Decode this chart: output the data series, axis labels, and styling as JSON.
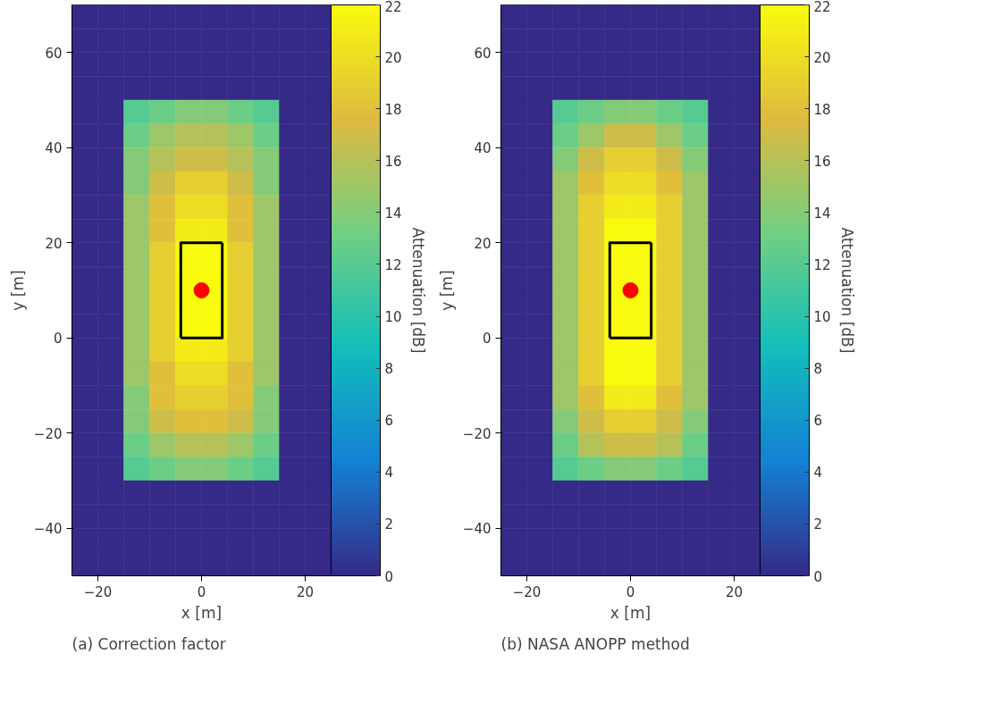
{
  "chart_data": [
    {
      "type": "heatmap",
      "xlabel": "x [m]",
      "ylabel": "y [m]",
      "clabel": "Attenuation [dB]",
      "annotations": [
        "(a) Correction factor"
      ],
      "xlim": [
        -25,
        25
      ],
      "ylim": [
        -50,
        70
      ],
      "xticks": [
        -20,
        0,
        20
      ],
      "yticks": [
        -40,
        -20,
        0,
        20,
        40,
        60
      ],
      "clim": [
        0,
        22
      ],
      "cticks": [
        0,
        2,
        4,
        6,
        8,
        10,
        12,
        14,
        16,
        18,
        20,
        22
      ],
      "cells": [
        [
          0,
          0,
          0,
          0,
          0,
          0,
          0,
          0,
          0,
          0
        ],
        [
          0,
          0,
          0,
          0,
          0,
          0,
          0,
          0,
          0,
          0
        ],
        [
          0,
          0,
          0,
          0,
          0,
          0,
          0,
          0,
          0,
          0
        ],
        [
          0,
          0,
          0,
          0,
          0,
          0,
          0,
          0,
          0,
          0
        ],
        [
          0,
          0,
          12,
          13,
          14,
          14,
          13,
          12,
          0,
          0
        ],
        [
          0,
          0,
          13,
          15,
          16,
          16,
          15,
          13,
          0,
          0
        ],
        [
          0,
          0,
          14,
          16,
          17,
          17,
          16,
          14,
          0,
          0
        ],
        [
          0,
          0,
          14,
          17,
          19,
          19,
          17,
          14,
          0,
          0
        ],
        [
          0,
          0,
          15,
          18,
          20,
          20,
          18,
          15,
          0,
          0
        ],
        [
          0,
          0,
          15,
          18,
          21,
          21,
          18,
          15,
          0,
          0
        ],
        [
          0,
          0,
          15,
          19,
          22,
          22,
          19,
          15,
          0,
          0
        ],
        [
          0,
          0,
          15,
          19,
          22,
          22,
          19,
          15,
          0,
          0
        ],
        [
          0,
          0,
          15,
          19,
          22,
          22,
          19,
          15,
          0,
          0
        ],
        [
          0,
          0,
          15,
          19,
          22,
          22,
          19,
          15,
          0,
          0
        ],
        [
          0,
          0,
          15,
          19,
          21,
          21,
          19,
          15,
          0,
          0
        ],
        [
          0,
          0,
          15,
          18,
          20,
          20,
          18,
          15,
          0,
          0
        ],
        [
          0,
          0,
          14,
          18,
          19,
          19,
          18,
          14,
          0,
          0
        ],
        [
          0,
          0,
          14,
          17,
          18,
          18,
          17,
          14,
          0,
          0
        ],
        [
          0,
          0,
          13,
          15,
          16,
          16,
          15,
          13,
          0,
          0
        ],
        [
          0,
          0,
          12,
          13,
          14,
          14,
          13,
          12,
          0,
          0
        ],
        [
          0,
          0,
          0,
          0,
          0,
          0,
          0,
          0,
          0,
          0
        ],
        [
          0,
          0,
          0,
          0,
          0,
          0,
          0,
          0,
          0,
          0
        ],
        [
          0,
          0,
          0,
          0,
          0,
          0,
          0,
          0,
          0,
          0
        ],
        [
          0,
          0,
          0,
          0,
          0,
          0,
          0,
          0,
          0,
          0
        ]
      ],
      "series": [
        {
          "type": "line",
          "x": [
            -4,
            -4,
            4
          ],
          "values": [
            0,
            20,
            20
          ],
          "color": "#000000"
        },
        {
          "type": "line",
          "x": [
            4,
            4,
            -4
          ],
          "values": [
            20,
            0,
            0
          ],
          "color": "#000000"
        },
        {
          "type": "scatter",
          "x": [
            0
          ],
          "values": [
            10
          ],
          "color": "#ff0000"
        }
      ],
      "grid": false
    },
    {
      "type": "heatmap",
      "xlabel": "x [m]",
      "ylabel": "y [m]",
      "clabel": "Attenuation [dB]",
      "annotations": [
        "(b) NASA ANOPP method"
      ],
      "xlim": [
        -25,
        25
      ],
      "ylim": [
        -50,
        70
      ],
      "xticks": [
        -20,
        0,
        20
      ],
      "yticks": [
        -40,
        -20,
        0,
        20,
        40,
        60
      ],
      "clim": [
        0,
        22
      ],
      "cticks": [
        0,
        2,
        4,
        6,
        8,
        10,
        12,
        14,
        16,
        18,
        20,
        22
      ],
      "cells": [
        [
          0,
          0,
          0,
          0,
          0,
          0,
          0,
          0,
          0,
          0
        ],
        [
          0,
          0,
          0,
          0,
          0,
          0,
          0,
          0,
          0,
          0
        ],
        [
          0,
          0,
          0,
          0,
          0,
          0,
          0,
          0,
          0,
          0
        ],
        [
          0,
          0,
          0,
          0,
          0,
          0,
          0,
          0,
          0,
          0
        ],
        [
          0,
          0,
          12,
          13,
          14,
          14,
          13,
          12,
          0,
          0
        ],
        [
          0,
          0,
          13,
          15,
          17,
          17,
          15,
          13,
          0,
          0
        ],
        [
          0,
          0,
          14,
          17,
          19,
          19,
          17,
          14,
          0,
          0
        ],
        [
          0,
          0,
          15,
          18,
          20,
          20,
          18,
          15,
          0,
          0
        ],
        [
          0,
          0,
          15,
          19,
          21,
          21,
          19,
          15,
          0,
          0
        ],
        [
          0,
          0,
          15,
          19,
          22,
          22,
          19,
          15,
          0,
          0
        ],
        [
          0,
          0,
          15,
          19,
          22,
          22,
          19,
          15,
          0,
          0
        ],
        [
          0,
          0,
          15,
          19,
          22,
          22,
          19,
          15,
          0,
          0
        ],
        [
          0,
          0,
          15,
          19,
          22,
          22,
          19,
          15,
          0,
          0
        ],
        [
          0,
          0,
          15,
          19,
          22,
          22,
          19,
          15,
          0,
          0
        ],
        [
          0,
          0,
          15,
          19,
          22,
          22,
          19,
          15,
          0,
          0
        ],
        [
          0,
          0,
          15,
          19,
          22,
          22,
          19,
          15,
          0,
          0
        ],
        [
          0,
          0,
          15,
          18,
          21,
          21,
          18,
          15,
          0,
          0
        ],
        [
          0,
          0,
          14,
          17,
          19,
          19,
          17,
          14,
          0,
          0
        ],
        [
          0,
          0,
          13,
          16,
          17,
          17,
          16,
          13,
          0,
          0
        ],
        [
          0,
          0,
          12,
          13,
          14,
          14,
          13,
          12,
          0,
          0
        ],
        [
          0,
          0,
          0,
          0,
          0,
          0,
          0,
          0,
          0,
          0
        ],
        [
          0,
          0,
          0,
          0,
          0,
          0,
          0,
          0,
          0,
          0
        ],
        [
          0,
          0,
          0,
          0,
          0,
          0,
          0,
          0,
          0,
          0
        ],
        [
          0,
          0,
          0,
          0,
          0,
          0,
          0,
          0,
          0,
          0
        ]
      ],
      "series": [
        {
          "type": "line",
          "x": [
            -4,
            -4,
            4
          ],
          "values": [
            0,
            20,
            20
          ],
          "color": "#000000"
        },
        {
          "type": "line",
          "x": [
            4,
            4,
            -4
          ],
          "values": [
            20,
            0,
            0
          ],
          "color": "#000000"
        },
        {
          "type": "scatter",
          "x": [
            0
          ],
          "values": [
            10
          ],
          "color": "#ff0000"
        }
      ],
      "grid": false
    }
  ]
}
